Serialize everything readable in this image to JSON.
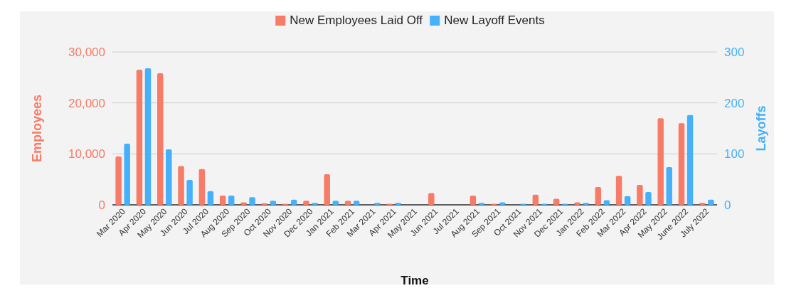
{
  "chart_data": {
    "type": "bar",
    "xlabel": "Time",
    "ylabel": "Employees",
    "y2label": "Layoffs",
    "legend": "top",
    "grid": "y",
    "categories": [
      "Mar 2020",
      "Apr 2020",
      "May 2020",
      "Jun 2020",
      "Jul 2020",
      "Aug 2020",
      "Sep 2020",
      "Oct 2020",
      "Nov 2020",
      "Dec 2020",
      "Jan 2021",
      "Feb 2021",
      "Mar 2021",
      "Apr 2021",
      "May 2021",
      "Jun 2021",
      "Jul 2021",
      "Aug 2021",
      "Sep 2021",
      "Oct 2021",
      "Nov 2021",
      "Dec 2021",
      "Jan 2022",
      "Feb 2022",
      "Mar 2022",
      "Apr 2022",
      "May 2022",
      "June 2022",
      "July 2022"
    ],
    "ylim": [
      0,
      30000
    ],
    "yticks": [
      {
        "value": 0,
        "label": "0"
      },
      {
        "value": 10000,
        "label": "10,000"
      },
      {
        "value": 20000,
        "label": "20,000"
      },
      {
        "value": 30000,
        "label": "30,000"
      }
    ],
    "y2lim": [
      0,
      300
    ],
    "y2ticks": [
      0,
      100,
      200,
      300
    ],
    "series": [
      {
        "name": "New Employees Laid Off",
        "color": "#f77b66",
        "values": [
          9500,
          26500,
          25800,
          7600,
          7000,
          1800,
          500,
          300,
          200,
          800,
          6000,
          800,
          0,
          200,
          0,
          2300,
          0,
          1800,
          200,
          0,
          2000,
          1200,
          500,
          3500,
          5700,
          3900,
          17000,
          16000,
          400
        ]
      },
      {
        "name": "New Layoff Events",
        "color": "#45b0fc",
        "axis": "y2",
        "values": [
          120,
          268,
          109,
          49,
          27,
          18,
          15,
          8,
          10,
          4,
          8,
          8,
          4,
          4,
          0,
          0,
          0,
          4,
          5,
          2,
          2,
          2,
          4,
          9,
          17,
          25,
          74,
          176,
          10
        ]
      }
    ]
  }
}
